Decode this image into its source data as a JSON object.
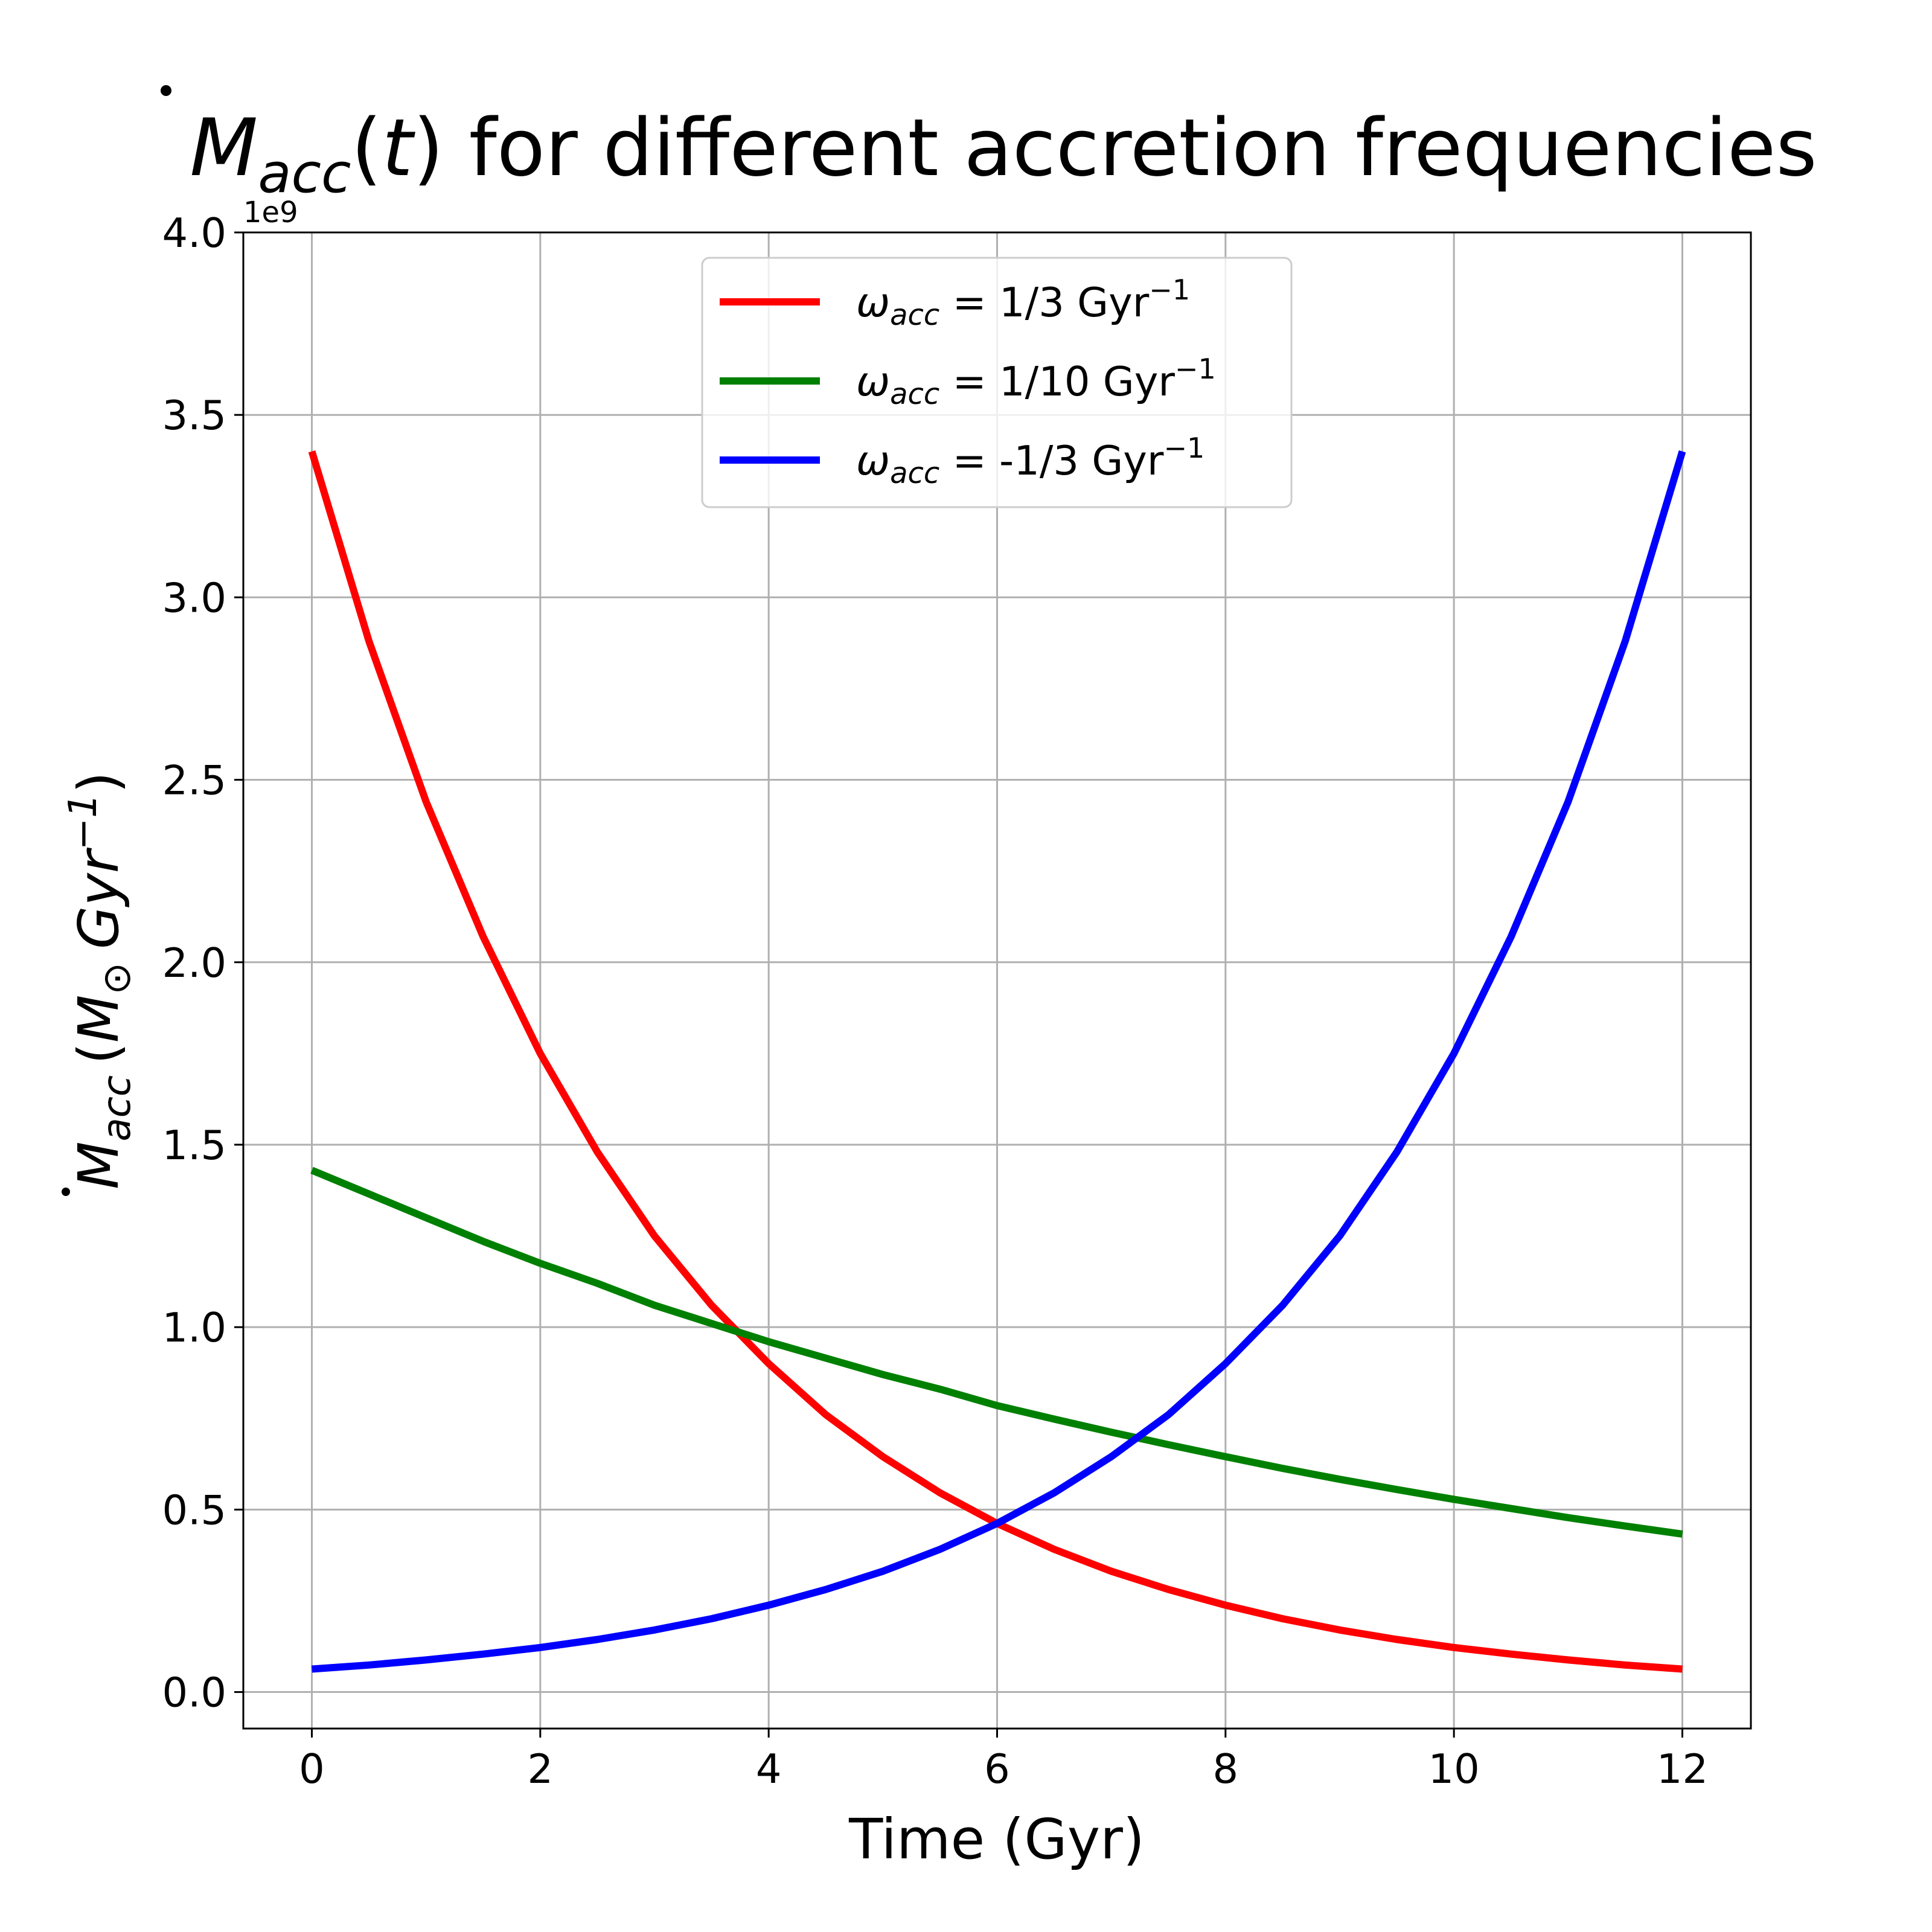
{
  "chart_data": {
    "type": "line",
    "title": "Ṁacc(t) for different accretion frequencies",
    "title_parts": {
      "symbol": "M",
      "sub": "acc",
      "rest_pre": "(",
      "var": "t",
      "rest_post": ") for different accretion frequencies"
    },
    "xlabel": "Time (Gyr)",
    "ylabel": "Ṁacc (M⊙ Gyr−1)",
    "ylabel_parts": {
      "symbol": "M",
      "sub": "acc",
      "open": "(",
      "sun": "M",
      "sun_sub": "⊙",
      "unit": "Gyr",
      "exp": "−1",
      "close": ")"
    },
    "y_offset_label": "1e9",
    "y_multiplier": 1000000000,
    "xlim": [
      -0.6,
      12.6
    ],
    "ylim": [
      -0.1,
      4.0
    ],
    "x_ticks": [
      0,
      2,
      4,
      6,
      8,
      10,
      12
    ],
    "x_tick_labels": [
      "0",
      "2",
      "4",
      "6",
      "8",
      "10",
      "12"
    ],
    "y_ticks": [
      0.0,
      0.5,
      1.0,
      1.5,
      2.0,
      2.5,
      3.0,
      3.5,
      4.0
    ],
    "y_tick_labels": [
      "0.0",
      "0.5",
      "1.0",
      "1.5",
      "2.0",
      "2.5",
      "3.0",
      "3.5",
      "4.0"
    ],
    "grid": true,
    "legend_position": "upper center",
    "x": [
      0,
      0.5,
      1,
      1.5,
      2,
      2.5,
      3,
      3.5,
      4,
      4.5,
      5,
      5.5,
      6,
      6.5,
      7,
      7.5,
      8,
      8.5,
      9,
      9.5,
      10,
      10.5,
      11,
      11.5,
      12
    ],
    "series": [
      {
        "name": "ωacc = 1/3 Gyr−1",
        "legend": {
          "omega": "ω",
          "sub": "acc",
          "text": " = 1/3 Gyr",
          "exp": "−1"
        },
        "color": "#ff0000",
        "values": [
          3.4,
          2.88,
          2.44,
          2.07,
          1.75,
          1.48,
          1.25,
          1.06,
          0.9,
          0.76,
          0.645,
          0.546,
          0.462,
          0.391,
          0.331,
          0.281,
          0.238,
          0.201,
          0.17,
          0.144,
          0.122,
          0.104,
          0.088,
          0.074,
          0.063
        ]
      },
      {
        "name": "ωacc = 1/10 Gyr−1",
        "legend": {
          "omega": "ω",
          "sub": "acc",
          "text": " = 1/10 Gyr",
          "exp": "−1"
        },
        "color": "#008000",
        "values": [
          1.43,
          1.365,
          1.3,
          1.235,
          1.175,
          1.12,
          1.06,
          1.01,
          0.96,
          0.915,
          0.87,
          0.83,
          0.785,
          0.748,
          0.712,
          0.678,
          0.645,
          0.613,
          0.583,
          0.555,
          0.528,
          0.503,
          0.478,
          0.455,
          0.433
        ]
      },
      {
        "name": "ωacc = -1/3 Gyr−1",
        "legend": {
          "omega": "ω",
          "sub": "acc",
          "text": " = -1/3 Gyr",
          "exp": "−1"
        },
        "color": "#0000ff",
        "values": [
          0.063,
          0.074,
          0.088,
          0.104,
          0.122,
          0.144,
          0.17,
          0.201,
          0.238,
          0.281,
          0.331,
          0.391,
          0.462,
          0.546,
          0.645,
          0.76,
          0.9,
          1.06,
          1.25,
          1.48,
          1.75,
          2.07,
          2.44,
          2.88,
          3.4
        ]
      }
    ]
  }
}
